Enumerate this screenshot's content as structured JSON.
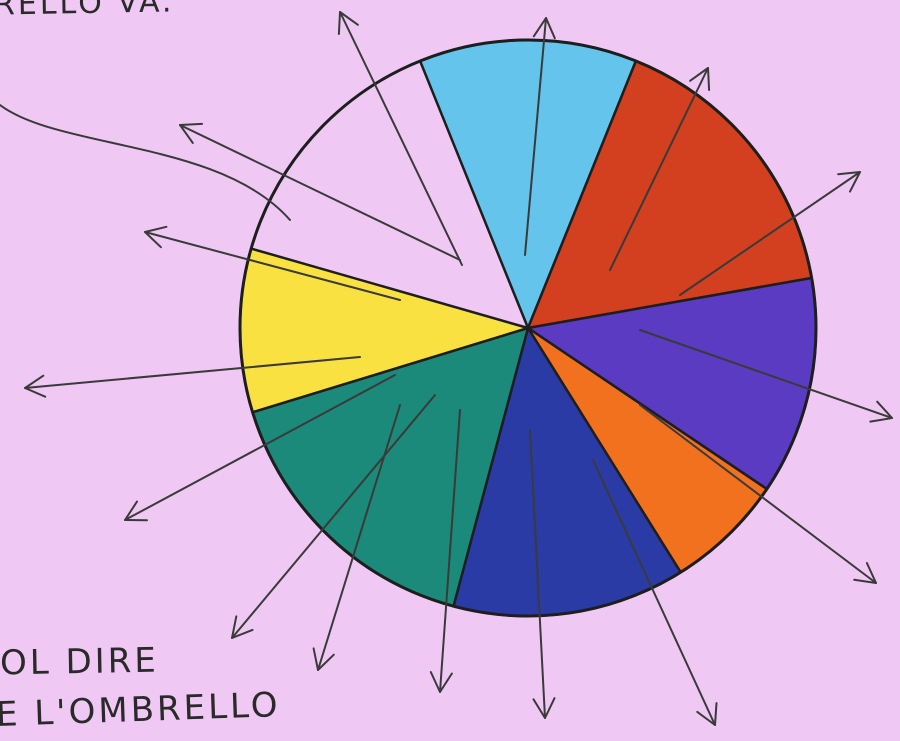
{
  "texts": {
    "top_fragment": "RELLO VA.",
    "bottom_line_1": "OL DIRE",
    "bottom_line_2": "E L'OMBRELLO"
  },
  "pie": {
    "outline_color": "#1e1e1e",
    "arrow_color": "#3a3a3a",
    "slices": [
      {
        "name": "light-blue",
        "color": "#64c4ec"
      },
      {
        "name": "red",
        "color": "#d3401f"
      },
      {
        "name": "violet",
        "color": "#5a3bc2"
      },
      {
        "name": "orange",
        "color": "#f2711f"
      },
      {
        "name": "dark-blue",
        "color": "#2b3ba6"
      },
      {
        "name": "teal",
        "color": "#1c8a7a"
      },
      {
        "name": "yellow",
        "color": "#f8e140"
      }
    ]
  }
}
